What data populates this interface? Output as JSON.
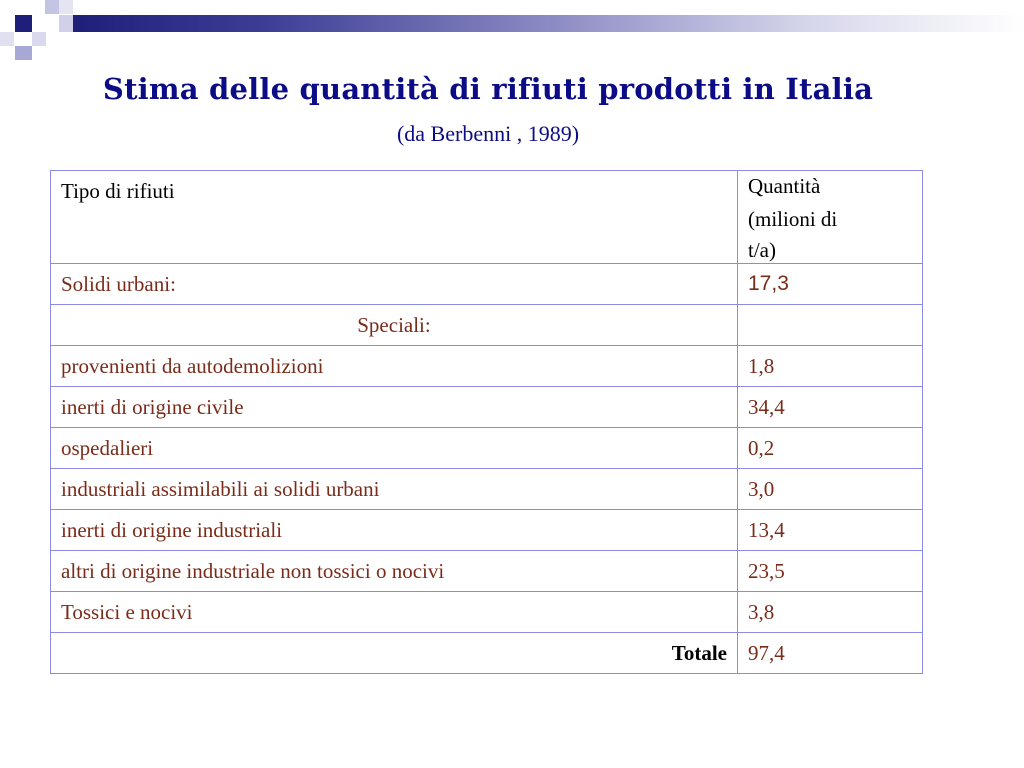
{
  "title": "Stima delle quantità di rifiuti prodotti in Italia",
  "subtitle": "(da Berbenni , 1989)",
  "colors": {
    "title": "#0c0c86",
    "border": "#8b8be6",
    "row_label": "#7a2c1a",
    "band": "#1f1f7a"
  },
  "table": {
    "header": {
      "col1": "Tipo di rifiuti",
      "col2_line1": "Quantità",
      "col2_line2": "(milioni di",
      "col2_line3": "t/a)"
    },
    "rows": [
      {
        "label": "Solidi urbani:",
        "value": "17,3"
      },
      {
        "label": "Speciali:",
        "value": ""
      },
      {
        "label": "provenienti da autodemolizioni",
        "value": "1,8"
      },
      {
        "label": "inerti di origine civile",
        "value": "34,4"
      },
      {
        "label": "ospedalieri",
        "value": "0,2"
      },
      {
        "label": "industriali assimilabili ai solidi urbani",
        "value": "3,0"
      },
      {
        "label": "inerti di origine industriali",
        "value": "13,4"
      },
      {
        "label": "altri di origine industriale non tossici o nocivi",
        "value": "23,5"
      },
      {
        "label": "Tossici e nocivi",
        "value": "3,8"
      },
      {
        "label": "Totale",
        "value": "97,4"
      }
    ]
  }
}
